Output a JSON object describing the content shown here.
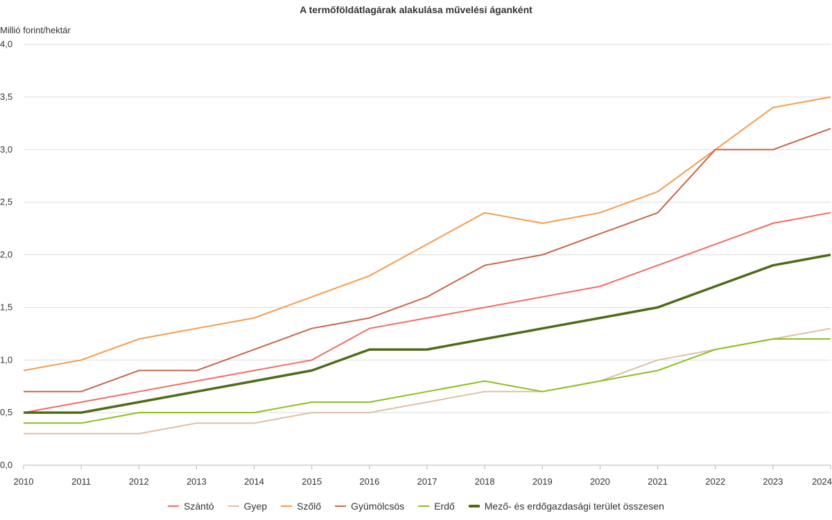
{
  "chart_data": {
    "type": "line",
    "title": "A termőföldátlagárak alakulása művelési áganként",
    "ylabel": "Millió forint/hektár",
    "xlabel": "",
    "x": [
      "2010",
      "2011",
      "2012",
      "2013",
      "2014",
      "2015",
      "2016",
      "2017",
      "2018",
      "2019",
      "2020",
      "2021",
      "2022",
      "2023",
      "2024"
    ],
    "ylim": [
      0,
      4
    ],
    "yticks": [
      0,
      0.5,
      1,
      1.5,
      2,
      2.5,
      3,
      3.5,
      4
    ],
    "ytick_labels": [
      "0,0",
      "0,5",
      "1,0",
      "1,5",
      "2,0",
      "2,5",
      "3,0",
      "3,5",
      "4,0"
    ],
    "grid": true,
    "legend_position": "bottom-center",
    "series": [
      {
        "name": "Szántó",
        "color": "#f26b63",
        "emphasis": false,
        "values": [
          0.5,
          0.6,
          0.7,
          0.8,
          0.9,
          1.0,
          1.3,
          1.4,
          1.5,
          1.6,
          1.7,
          1.9,
          2.1,
          2.3,
          2.4
        ]
      },
      {
        "name": "Gyep",
        "color": "#dcbfa5",
        "emphasis": false,
        "values": [
          0.3,
          0.3,
          0.3,
          0.4,
          0.4,
          0.5,
          0.5,
          0.6,
          0.7,
          0.7,
          0.8,
          1.0,
          1.1,
          1.2,
          1.3
        ]
      },
      {
        "name": "Szőlő",
        "color": "#f59b4c",
        "emphasis": false,
        "values": [
          0.9,
          1.0,
          1.2,
          1.3,
          1.4,
          1.6,
          1.8,
          2.1,
          2.4,
          2.3,
          2.4,
          2.6,
          3.0,
          3.4,
          3.5
        ]
      },
      {
        "name": "Gyümölcsös",
        "color": "#c8654a",
        "emphasis": false,
        "values": [
          0.7,
          0.7,
          0.9,
          0.9,
          1.1,
          1.3,
          1.4,
          1.6,
          1.9,
          2.0,
          2.2,
          2.4,
          3.0,
          3.0,
          3.2
        ]
      },
      {
        "name": "Erdő",
        "color": "#8cbe1e",
        "emphasis": false,
        "values": [
          0.4,
          0.4,
          0.5,
          0.5,
          0.5,
          0.6,
          0.6,
          0.7,
          0.8,
          0.7,
          0.8,
          0.9,
          1.1,
          1.2,
          1.2
        ]
      },
      {
        "name": "Mező- és erdőgazdasági terület összesen",
        "color": "#4e6b16",
        "emphasis": true,
        "values": [
          0.5,
          0.5,
          0.6,
          0.7,
          0.8,
          0.9,
          1.1,
          1.1,
          1.2,
          1.3,
          1.4,
          1.5,
          1.7,
          1.9,
          2.0
        ]
      }
    ]
  }
}
